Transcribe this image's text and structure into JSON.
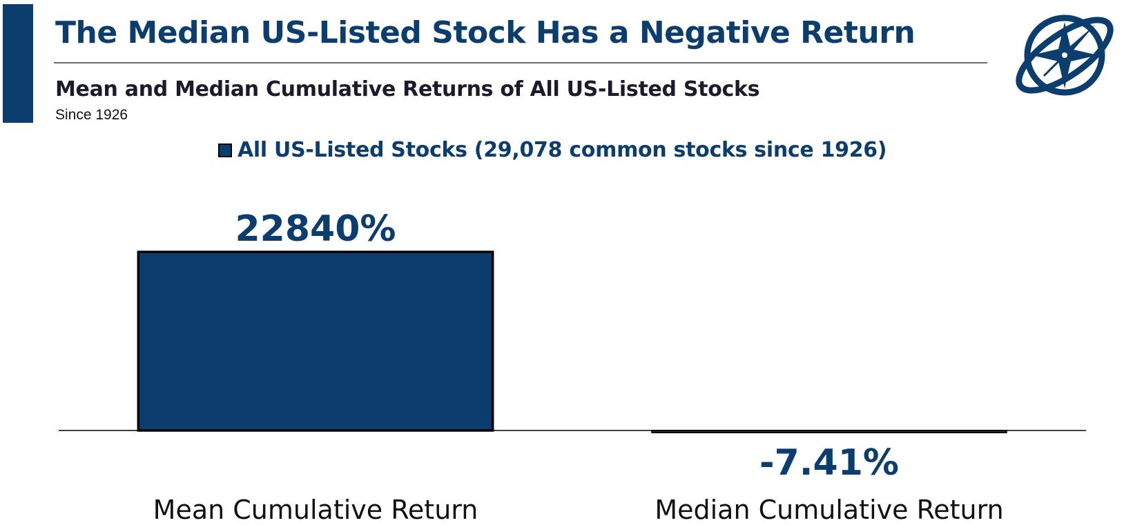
{
  "header": {
    "title": "The Median US-Listed Stock Has a Negative Return",
    "subtitle": "Mean and Median Cumulative Returns of All US-Listed Stocks",
    "since": "Since 1926"
  },
  "icons": {
    "logo": "compass-globe-logo"
  },
  "colors": {
    "accent": "#0b3d6e",
    "bar_fill": "#0b3d6e",
    "bar_stroke": "#000000",
    "axis": "#000000"
  },
  "chart_data": {
    "type": "bar",
    "categories": [
      "Mean Cumulative Return",
      "Median Cumulative Return"
    ],
    "series": [
      {
        "name": "All US-Listed Stocks (29,078 common stocks since 1926)",
        "values": [
          22840,
          -7.41
        ]
      }
    ],
    "data_labels": [
      "22840%",
      "-7.41%"
    ],
    "title": "",
    "xlabel": "",
    "ylabel": "",
    "ylim": [
      -60,
      24000
    ],
    "grid": false,
    "legend": "top-center",
    "units": "%"
  }
}
